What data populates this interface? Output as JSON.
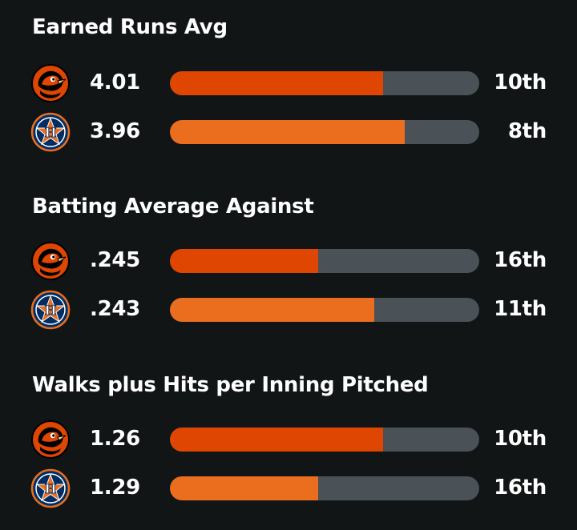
{
  "colors": {
    "background": "#111516",
    "track": "#4a5157",
    "orioles_bar": "#df4601",
    "astros_bar": "#eb6e1f"
  },
  "teams": {
    "orioles": {
      "logo_icon": "orioles-bird-icon"
    },
    "astros": {
      "logo_icon": "astros-star-h-icon"
    }
  },
  "sections": [
    {
      "title": "Earned Runs Avg",
      "rows": [
        {
          "team": "orioles",
          "value": "4.01",
          "rank": "10th",
          "fill": 0.69
        },
        {
          "team": "astros",
          "value": "3.96",
          "rank": "8th",
          "fill": 0.76
        }
      ]
    },
    {
      "title": "Batting Average Against",
      "rows": [
        {
          "team": "orioles",
          "value": ".245",
          "rank": "16th",
          "fill": 0.48
        },
        {
          "team": "astros",
          "value": ".243",
          "rank": "11th",
          "fill": 0.66
        }
      ]
    },
    {
      "title": "Walks plus Hits per Inning Pitched",
      "rows": [
        {
          "team": "orioles",
          "value": "1.26",
          "rank": "10th",
          "fill": 0.69
        },
        {
          "team": "astros",
          "value": "1.29",
          "rank": "16th",
          "fill": 0.48
        }
      ]
    }
  ]
}
